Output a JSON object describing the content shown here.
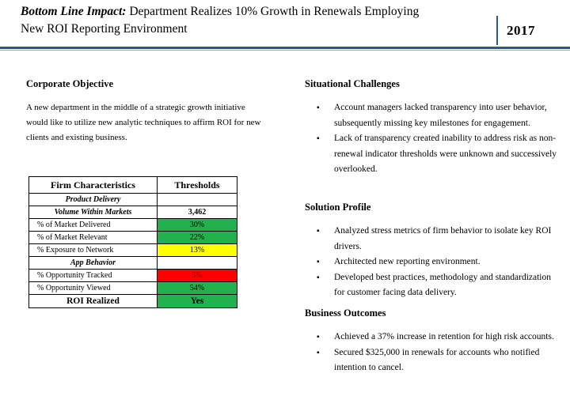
{
  "header": {
    "title_lead": "Bottom Line Impact:",
    "title_rest": "Department Realizes 10% Growth in Renewals Employing",
    "title_line2": "New ROI Reporting Environment",
    "year": "2017",
    "accent_color": "#2f5597"
  },
  "corporate_objective": {
    "heading": "Corporate Objective",
    "text": "A new department in the middle of a strategic growth initiative would like to utilize new analytic techniques to affirm ROI for new clients and existing business."
  },
  "firm_table": {
    "col1_header": "Firm Characteristics",
    "col2_header": "Thresholds",
    "rows": [
      {
        "label": "Product Delivery",
        "value": "",
        "kind": "sub",
        "color": ""
      },
      {
        "label": "Volume Within Markets",
        "value": "3,462",
        "kind": "vol",
        "color": ""
      },
      {
        "label": "% of Market Delivered",
        "value": "30%",
        "kind": "item",
        "color": "green"
      },
      {
        "label": "% of Market Relevant",
        "value": "22%",
        "kind": "item",
        "color": "green"
      },
      {
        "label": "% Exposure to Network",
        "value": "13%",
        "kind": "item",
        "color": "yellow"
      },
      {
        "label": "App Behavior",
        "value": "",
        "kind": "sub",
        "color": ""
      },
      {
        "label": "% Opportunity Tracked",
        "value": "5%",
        "kind": "item",
        "color": "red"
      },
      {
        "label": "% Opportunity Viewed",
        "value": "54%",
        "kind": "item",
        "color": "green"
      },
      {
        "label": "ROI Realized",
        "value": "Yes",
        "kind": "roi",
        "color": "green"
      }
    ]
  },
  "situational_challenges": {
    "heading": "Situational Challenges",
    "items": [
      "Account managers lacked transparency into user behavior, subsequently missing key milestones for engagement.",
      "Lack of transparency created inability to address risk as non-renewal indicator thresholds were unknown and successively overlooked."
    ]
  },
  "solution_profile": {
    "heading": "Solution Profile",
    "items": [
      "Analyzed stress metrics of firm behavior to isolate key ROI drivers.",
      "Architected new reporting environment.",
      "Developed best practices, methodology and standardization for customer facing data delivery."
    ]
  },
  "business_outcomes": {
    "heading": "Business Outcomes",
    "items": [
      "Achieved a 37% increase in retention for high risk accounts.",
      "Secured $325,000 in renewals for accounts who notified intention to cancel."
    ]
  }
}
